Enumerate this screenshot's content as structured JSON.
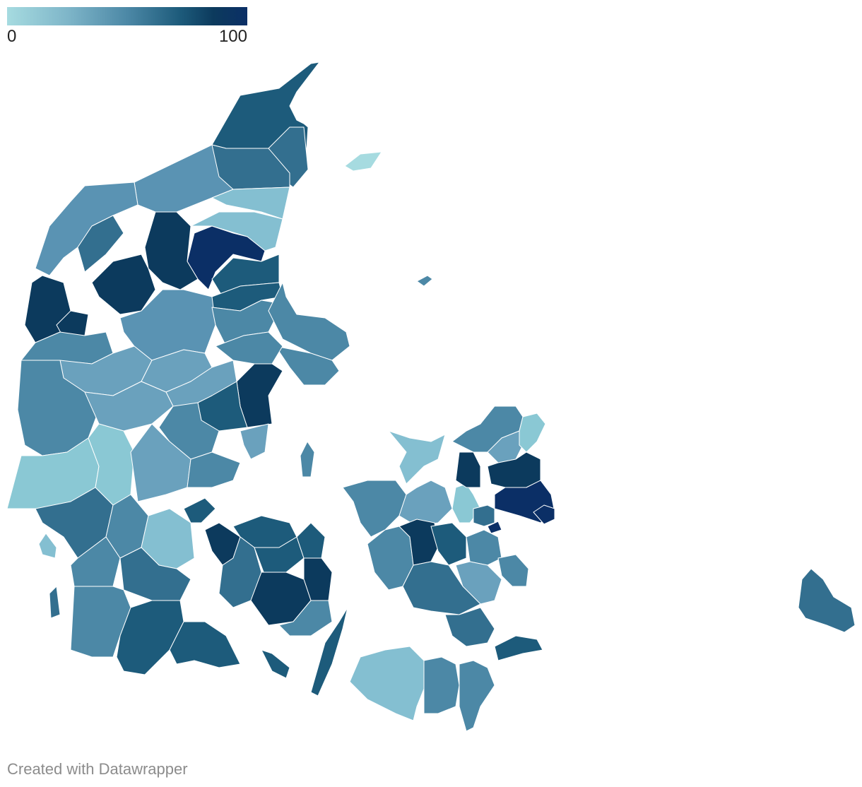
{
  "legend": {
    "min_label": "0",
    "max_label": "100",
    "colors": [
      "#a6dbe0",
      "#7fb6c9",
      "#4c88a6",
      "#1d5b7b",
      "#0c3a5d",
      "#0b2f66"
    ]
  },
  "map": {
    "type": "choropleth",
    "region": "Denmark municipalities",
    "value_range": [
      0,
      100
    ]
  },
  "footer": {
    "credit": "Created with Datawrapper"
  }
}
